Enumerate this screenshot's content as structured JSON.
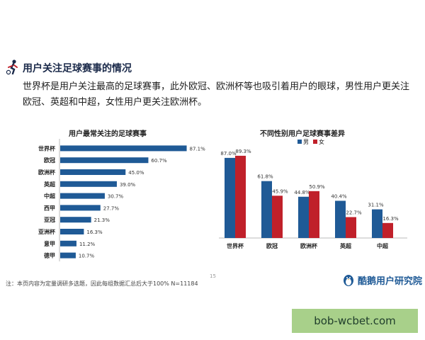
{
  "header": {
    "title": "用户关注足球赛事的情况",
    "summary": "世界杯是用户关注最高的足球赛事，此外欧冠、欧洲杯等也吸引着用户的眼球，男性用户更关注欧冠、英超和中超，女性用户更关注欧洲杯。",
    "icon": "soccer-player-icon"
  },
  "colors": {
    "bar_primary": "#1f5a96",
    "male": "#1f5a96",
    "female": "#c0202a",
    "axis": "#bbbbbb"
  },
  "chart_data": [
    {
      "type": "bar",
      "orientation": "horizontal",
      "title": "用户最常关注的足球赛事",
      "categories": [
        "世界杯",
        "欧冠",
        "欧洲杯",
        "英超",
        "中超",
        "西甲",
        "亚冠",
        "亚洲杯",
        "意甲",
        "德甲"
      ],
      "values": [
        87.1,
        60.7,
        45.0,
        39.0,
        30.7,
        27.7,
        21.3,
        16.3,
        11.2,
        10.7
      ],
      "value_labels": [
        "87.1%",
        "60.7%",
        "45.0%",
        "39.0%",
        "30.7%",
        "27.7%",
        "21.3%",
        "16.3%",
        "11.2%",
        "10.7%"
      ],
      "xlim": [
        0,
        100
      ],
      "grid": false
    },
    {
      "type": "bar",
      "title": "不同性别用户足球赛事差异",
      "categories": [
        "世界杯",
        "欧冠",
        "欧洲杯",
        "英超",
        "中超"
      ],
      "series": [
        {
          "name": "男",
          "values": [
            87.0,
            61.8,
            44.8,
            40.4,
            31.1
          ],
          "labels": [
            "87.0%",
            "61.8%",
            "44.8%",
            "40.4%",
            "31.1%"
          ]
        },
        {
          "name": "女",
          "values": [
            89.3,
            45.9,
            50.9,
            22.7,
            16.3
          ],
          "labels": [
            "89.3%",
            "45.9%",
            "50.9%",
            "22.7%",
            "16.3%"
          ]
        }
      ],
      "ylim": [
        0,
        100
      ],
      "legend": "top-center",
      "grid": false
    }
  ],
  "footer": {
    "note": "注：本页内容为定量调研多选题，因此每组数据汇总后大于100%  N=11184",
    "page": "15",
    "brand": "酷鹅用户研究院",
    "brand_icon": "penguin-logo-icon"
  },
  "watermark": "bob-wcbet.com"
}
